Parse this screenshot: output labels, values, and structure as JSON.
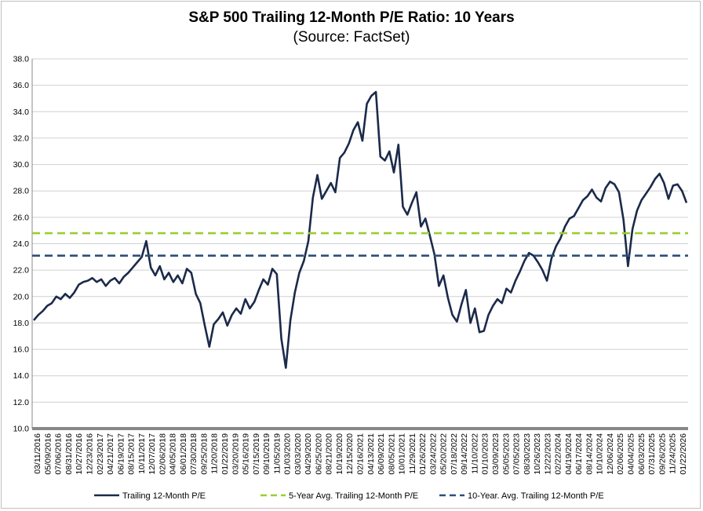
{
  "chart_data": {
    "type": "line",
    "title": "S&P 500 Trailing 12-Month P/E Ratio: 10 Years",
    "subtitle": "(Source: FactSet)",
    "ylim": [
      10.0,
      38.0
    ],
    "yticks": [
      "10.0",
      "12.0",
      "14.0",
      "16.0",
      "18.0",
      "20.0",
      "22.0",
      "24.0",
      "26.0",
      "28.0",
      "30.0",
      "32.0",
      "34.0",
      "36.0",
      "38.0"
    ],
    "x_tick_labels": [
      "03/11/2016",
      "05/09/2016",
      "07/06/2016",
      "08/31/2016",
      "10/27/2016",
      "12/23/2016",
      "02/23/2017",
      "04/21/2017",
      "06/19/2017",
      "08/15/2017",
      "10/11/2017",
      "12/07/2017",
      "02/06/2018",
      "04/05/2018",
      "06/01/2018",
      "07/30/2018",
      "09/25/2018",
      "11/20/2018",
      "01/22/2019",
      "03/20/2019",
      "05/16/2019",
      "07/15/2019",
      "09/10/2019",
      "11/05/2019",
      "01/03/2020",
      "03/03/2020",
      "04/29/2020",
      "06/25/2020",
      "08/21/2020",
      "10/19/2020",
      "12/15/2020",
      "02/16/2021",
      "04/13/2021",
      "06/09/2021",
      "08/05/2021",
      "10/01/2021",
      "11/29/2021",
      "01/26/2022",
      "03/24/2022",
      "05/20/2022",
      "07/18/2022",
      "09/14/2022",
      "11/10/2022",
      "01/10/2023",
      "03/09/2023",
      "05/05/2023",
      "07/05/2023",
      "08/30/2023",
      "10/26/2023",
      "12/22/2023",
      "02/22/2024",
      "04/19/2024",
      "06/17/2024",
      "08/14/2024",
      "10/10/2024",
      "12/06/2024",
      "02/06/2025",
      "04/04/2025",
      "06/03/2025",
      "07/31/2025",
      "09/26/2025",
      "11/24/2025",
      "01/22/2026"
    ],
    "series": [
      {
        "name": "Trailing 12-Month P/E",
        "color": "#1b2a4a",
        "values": [
          18.2,
          18.6,
          18.9,
          19.3,
          19.5,
          20.0,
          19.8,
          20.2,
          19.9,
          20.3,
          20.9,
          21.1,
          21.2,
          21.4,
          21.1,
          21.3,
          20.8,
          21.2,
          21.4,
          21.0,
          21.5,
          21.8,
          22.2,
          22.6,
          23.0,
          24.2,
          22.2,
          21.6,
          22.3,
          21.3,
          21.8,
          21.1,
          21.6,
          21.0,
          22.1,
          21.8,
          20.2,
          19.5,
          17.8,
          16.2,
          17.9,
          18.3,
          18.8,
          17.8,
          18.6,
          19.1,
          18.7,
          19.8,
          19.1,
          19.6,
          20.5,
          21.3,
          20.9,
          22.1,
          21.7,
          16.8,
          14.6,
          18.2,
          20.3,
          21.8,
          22.7,
          24.2,
          27.5,
          29.2,
          27.4,
          28.0,
          28.6,
          27.9,
          30.5,
          30.9,
          31.6,
          32.6,
          33.2,
          31.8,
          34.6,
          35.2,
          35.5,
          30.6,
          30.3,
          31.0,
          29.4,
          31.5,
          26.8,
          26.2,
          27.1,
          27.9,
          25.3,
          25.9,
          24.6,
          23.2,
          20.8,
          21.6,
          19.9,
          18.6,
          18.1,
          19.4,
          20.5,
          18.0,
          19.1,
          17.3,
          17.4,
          18.6,
          19.3,
          19.8,
          19.5,
          20.6,
          20.3,
          21.2,
          21.9,
          22.7,
          23.3,
          23.1,
          22.6,
          22.0,
          21.2,
          22.9,
          23.8,
          24.4,
          25.3,
          25.9,
          26.1,
          26.7,
          27.3,
          27.6,
          28.1,
          27.5,
          27.2,
          28.2,
          28.7,
          28.5,
          27.9,
          25.8,
          22.3,
          25.1,
          26.5,
          27.3,
          27.8,
          28.3,
          28.9,
          29.3,
          28.6,
          27.4,
          28.4,
          28.5,
          28.0,
          27.1
        ]
      },
      {
        "name": "5-Year Avg. Trailing 12-Month P/E",
        "color": "#9acd32",
        "value": 24.8
      },
      {
        "name": "10-Year. Avg. Trailing 12-Month P/E",
        "color": "#2e4d7b",
        "value": 23.1
      }
    ]
  }
}
